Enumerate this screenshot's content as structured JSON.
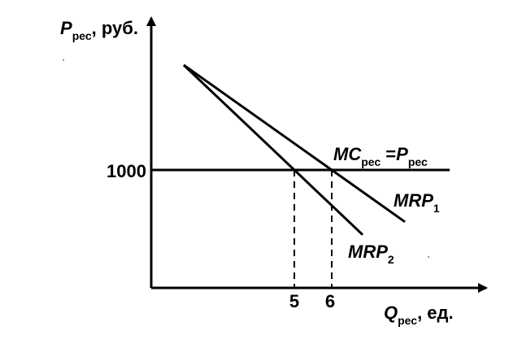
{
  "chart_data": {
    "type": "line",
    "y_axis": {
      "main": "P",
      "sub": "рес",
      "unit": ", руб."
    },
    "x_axis": {
      "main": "Q",
      "sub": "рес",
      "unit": ", ед."
    },
    "y_tick": {
      "value": 1000,
      "label": "1000"
    },
    "x_ticks": [
      {
        "value": 5,
        "label": "5"
      },
      {
        "value": 6,
        "label": "6"
      }
    ],
    "mc_line": {
      "main": "MC",
      "sub1": "рес",
      "eq": " =",
      "main2": "P",
      "sub2": "рес",
      "price": 1000
    },
    "series": [
      {
        "main": "MRP",
        "sub": "1",
        "q_at_price": 6
      },
      {
        "main": "MRP",
        "sub": "2",
        "q_at_price": 5
      }
    ]
  }
}
